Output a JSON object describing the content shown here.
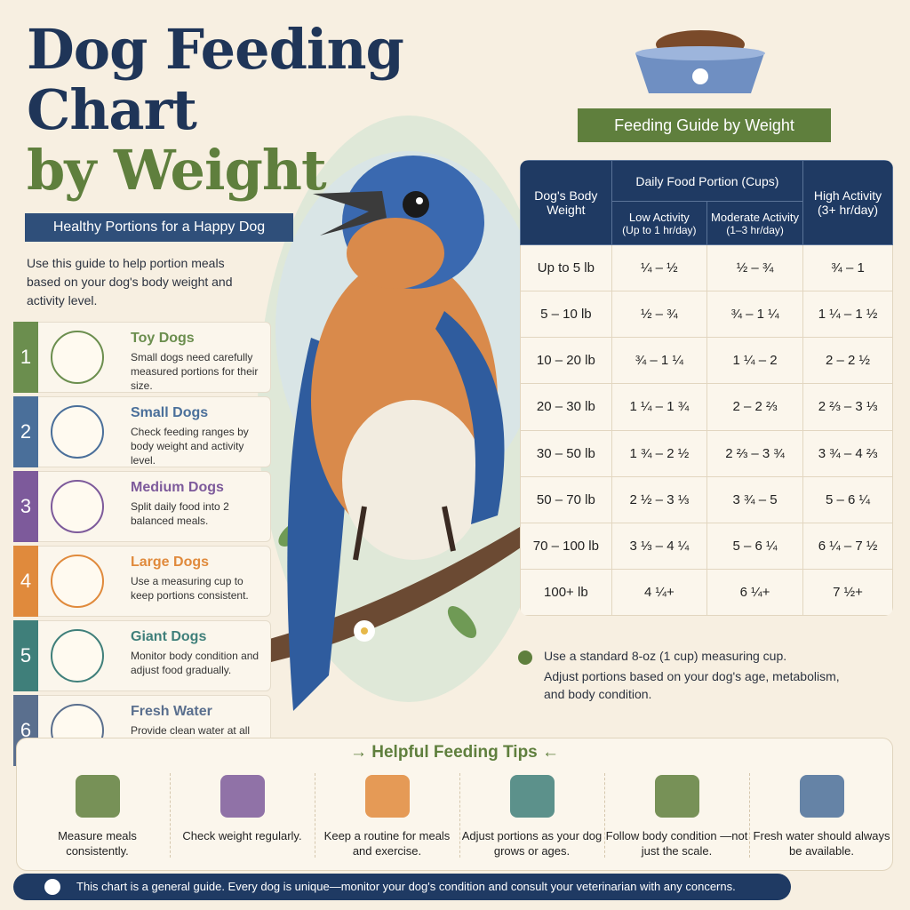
{
  "header": {
    "title_lines": [
      "Dog Feeding",
      "Chart",
      "by Weight"
    ],
    "subtitle": "Healthy Portions for a Happy Dog",
    "intro": "Use this guide to help portion meals based on your dog's body weight and activity level."
  },
  "steps": [
    {
      "number": 1,
      "title": "Toy Dogs",
      "text": "Small dogs need carefully measured portions for their size.",
      "color": "#6b8e4e"
    },
    {
      "number": 2,
      "title": "Small Dogs",
      "text": "Check feeding ranges by body weight and activity level.",
      "color": "#4a6f9a"
    },
    {
      "number": 3,
      "title": "Medium Dogs",
      "text": "Split daily food into 2 balanced meals.",
      "color": "#7d5a9b"
    },
    {
      "number": 4,
      "title": "Large Dogs",
      "text": "Use a measuring cup to keep portions consistent.",
      "color": "#e08a3c"
    },
    {
      "number": 5,
      "title": "Giant Dogs",
      "text": "Monitor body condition and adjust food gradually.",
      "color": "#3f7f7a"
    },
    {
      "number": 6,
      "title": "Fresh Water",
      "text": "Provide clean water at all times alongside meals.",
      "color": "#5a6f8e"
    }
  ],
  "guide": {
    "title": "Feeding Guide by Weight",
    "table": {
      "weight_header": "Dog's Body Weight",
      "portion_header": "Daily Food Portion (Cups)",
      "columns": [
        {
          "name": "Low Activity",
          "detail": "(Up to 1 hr/day)"
        },
        {
          "name": "Moderate Activity",
          "detail": "(1–3 hr/day)"
        },
        {
          "name": "High Activity",
          "detail": "(3+ hr/day)"
        }
      ],
      "rows": [
        [
          "Up to 5 lb",
          "¼ – ½",
          "½ – ¾",
          "¾ – 1"
        ],
        [
          "5 – 10 lb",
          "½ – ¾",
          "¾ – 1 ¼",
          "1 ¼ – 1 ½"
        ],
        [
          "10 – 20 lb",
          "¾ – 1 ¼",
          "1 ¼ – 2",
          "2 – 2 ½"
        ],
        [
          "20 – 30 lb",
          "1 ¼ – 1 ¾",
          "2 – 2 ⅔",
          "2 ⅔ – 3 ⅓"
        ],
        [
          "30 – 50 lb",
          "1 ¾ – 2 ½",
          "2 ⅔ – 3 ¾",
          "3 ¾ – 4 ⅔"
        ],
        [
          "50 – 70 lb",
          "2 ½ – 3 ⅓",
          "3 ¾ – 5",
          "5 – 6 ¼"
        ],
        [
          "70 – 100 lb",
          "3 ⅓ – 4 ¼",
          "5 – 6 ¼",
          "6 ¼ – 7 ½"
        ],
        [
          "100+ lb",
          "4 ¼+",
          "6 ¼+",
          "7 ½+"
        ]
      ]
    },
    "notes": [
      "Use a standard 8-oz (1 cup) measuring cup.",
      "Adjust portions based on your dog's age, metabolism, and body condition."
    ]
  },
  "tips": {
    "title": "→ Helpful Feeding Tips ←",
    "items": [
      "Measure meals consistently.",
      "Check weight regularly.",
      "Keep a routine for meals and exercise.",
      "Adjust portions as your dog grows or ages.",
      "Follow body condition —not just the scale.",
      "Fresh water should always be available."
    ]
  },
  "footer": "This chart is a general guide. Every dog is unique—monitor your dog's condition and consult your veterinarian with any concerns."
}
